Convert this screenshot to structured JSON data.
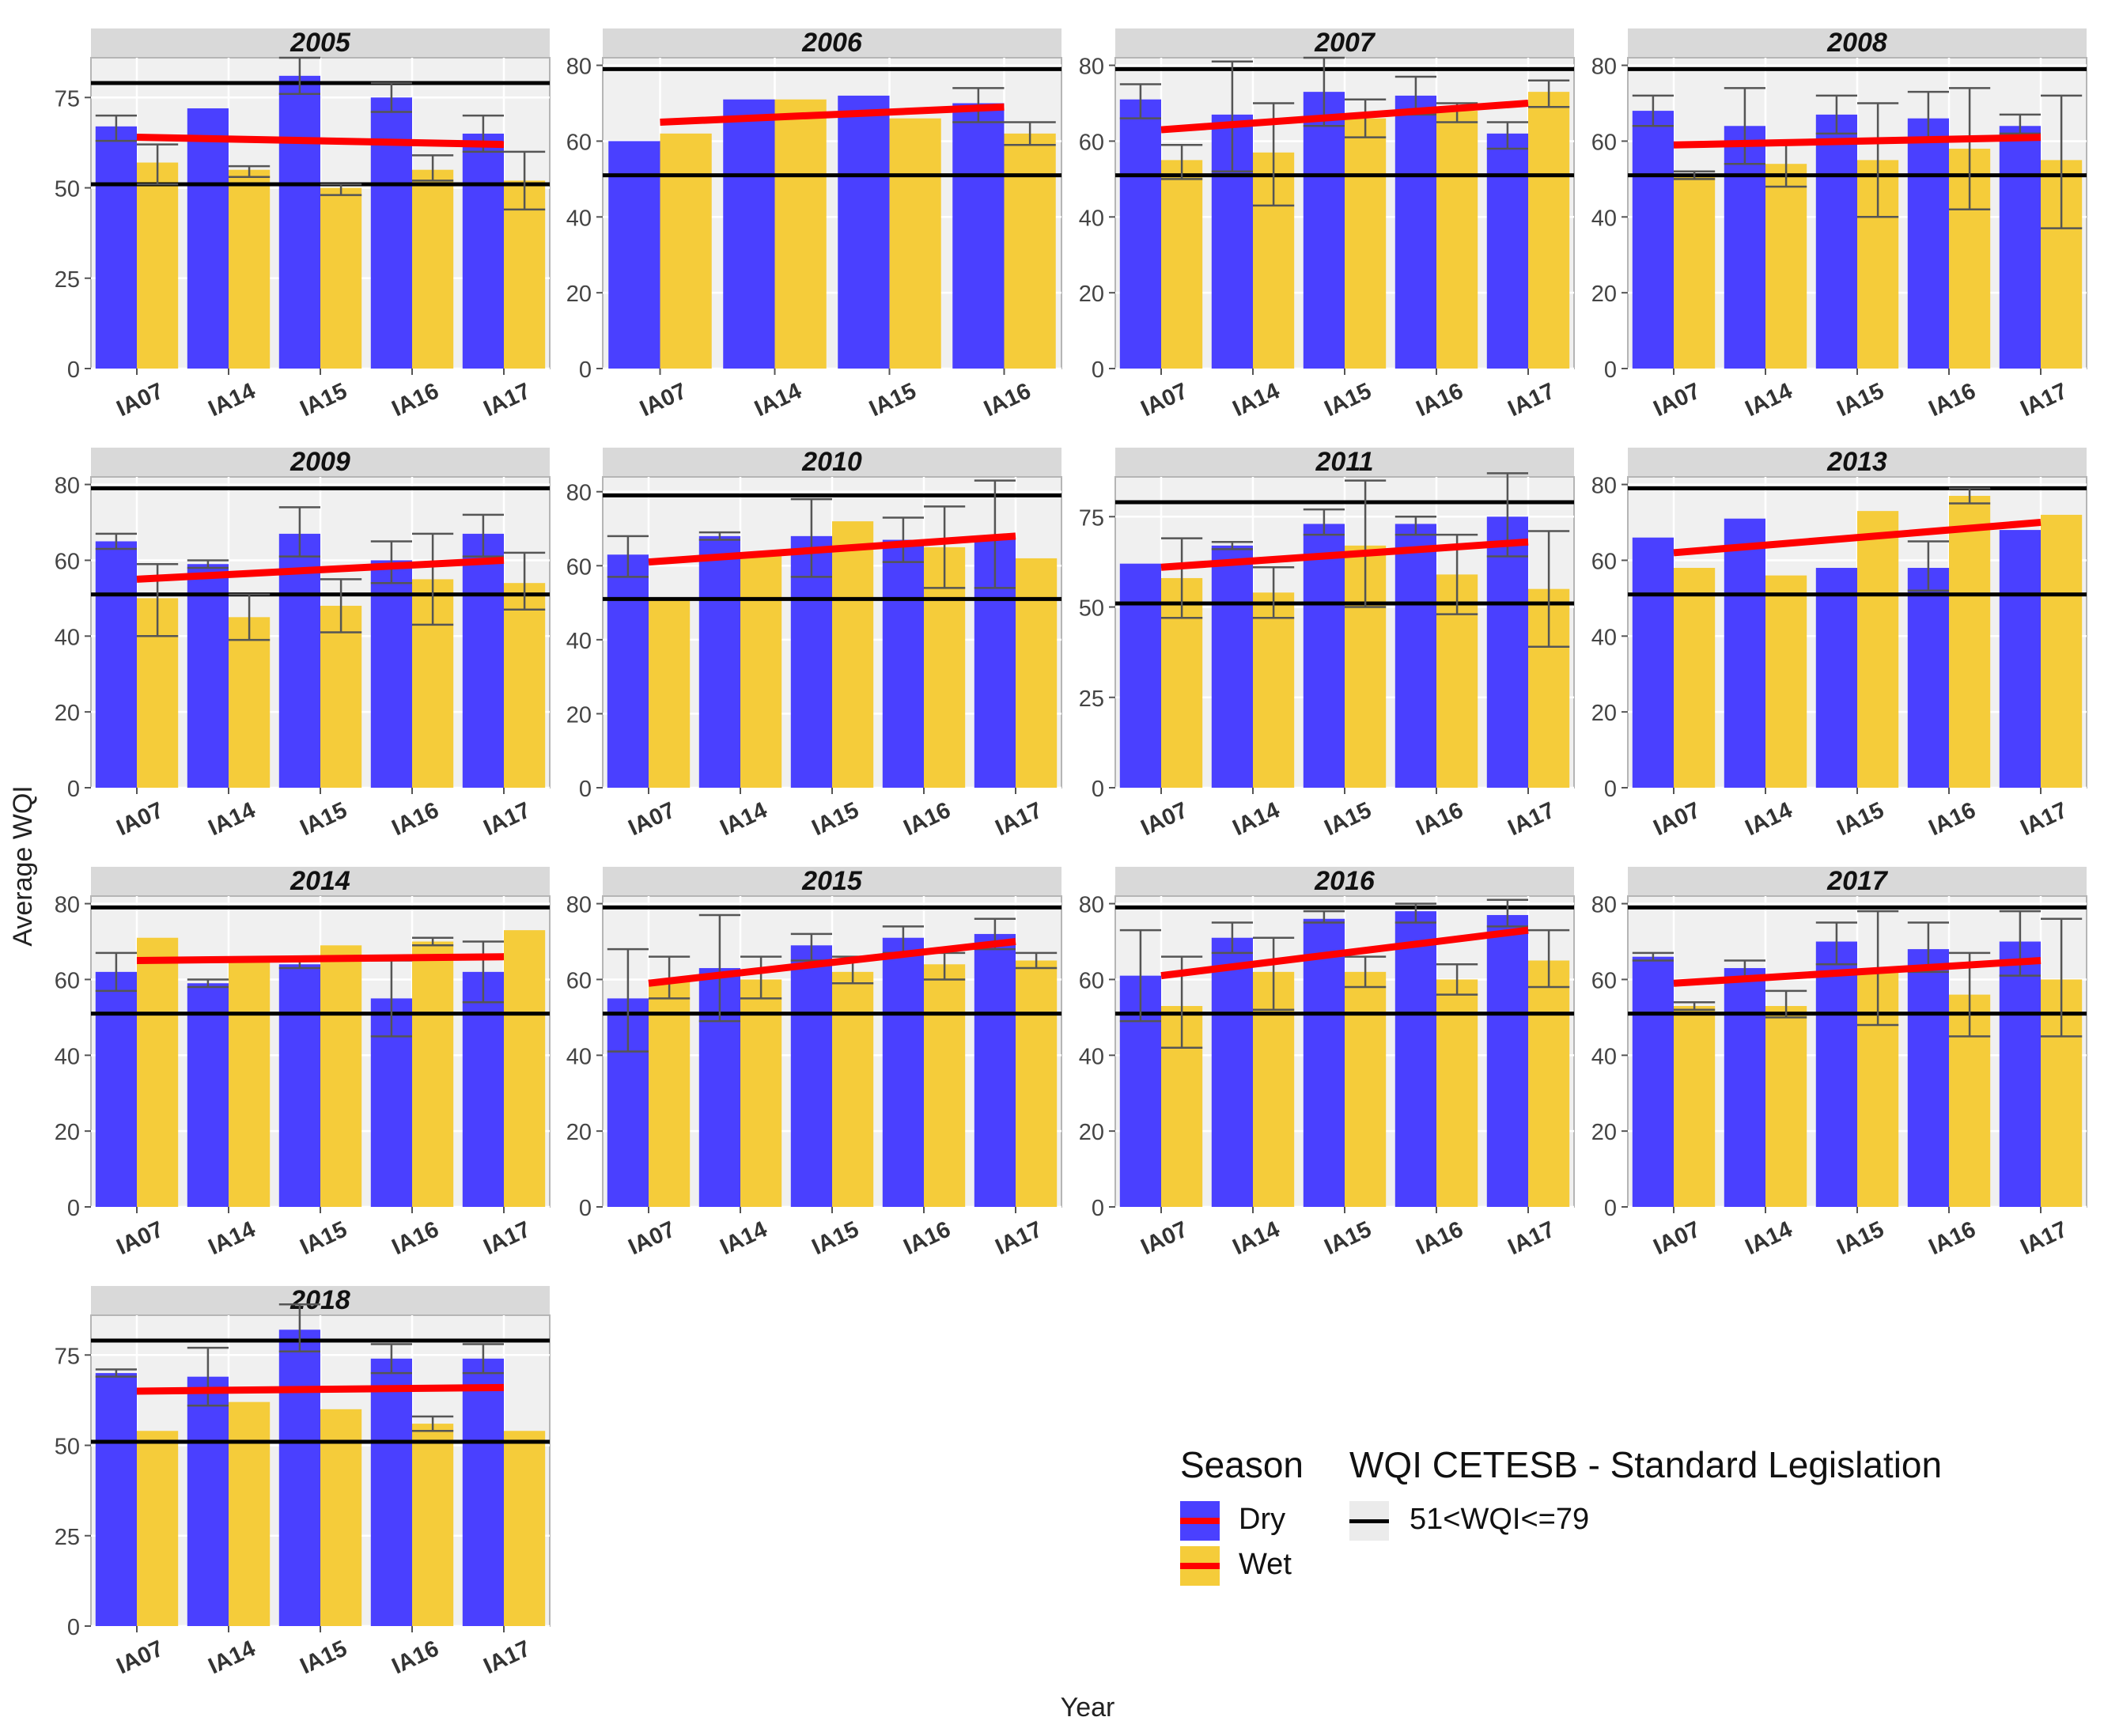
{
  "axis": {
    "ylabel": "Average WQI",
    "xlabel": "Year"
  },
  "colors": {
    "dry": "#4a40ff",
    "wet": "#f5cc3a",
    "trend": "#ff0000",
    "standard": "#000000",
    "panel_bg": "#f0f0f0",
    "strip_bg": "#d9d9d9"
  },
  "legend": {
    "season_title": "Season",
    "season_items": [
      {
        "label": "Dry",
        "color": "#4a40ff"
      },
      {
        "label": "Wet",
        "color": "#f5cc3a"
      }
    ],
    "standard_title": "WQI CETESB - Standard Legislation",
    "standard_label": "51<WQI<=79"
  },
  "chart_data": {
    "type": "bar",
    "standard_lines": [
      51,
      79
    ],
    "panels": [
      {
        "year": "2005",
        "ylim": [
          0,
          86
        ],
        "yticks": [
          0,
          25,
          50,
          75
        ],
        "categories": [
          "IA07",
          "IA14",
          "IA15",
          "IA16",
          "IA17"
        ],
        "dry": [
          {
            "v": 67,
            "e": [
              63,
              70
            ]
          },
          {
            "v": 72,
            "e": null
          },
          {
            "v": 81,
            "e": [
              76,
              86
            ]
          },
          {
            "v": 75,
            "e": [
              71,
              79
            ]
          },
          {
            "v": 65,
            "e": [
              60,
              70
            ]
          }
        ],
        "wet": [
          {
            "v": 57,
            "e": [
              51,
              62
            ]
          },
          {
            "v": 55,
            "e": [
              53,
              56
            ]
          },
          {
            "v": 50,
            "e": [
              48,
              51
            ]
          },
          {
            "v": 55,
            "e": [
              52,
              59
            ]
          },
          {
            "v": 52,
            "e": [
              44,
              60
            ]
          }
        ],
        "trend": [
          64,
          62
        ]
      },
      {
        "year": "2006",
        "ylim": [
          0,
          82
        ],
        "yticks": [
          0,
          20,
          40,
          60,
          80
        ],
        "categories": [
          "IA07",
          "IA14",
          "IA15",
          "IA16"
        ],
        "dry": [
          {
            "v": 60,
            "e": null
          },
          {
            "v": 71,
            "e": null
          },
          {
            "v": 72,
            "e": null
          },
          {
            "v": 70,
            "e": [
              65,
              74
            ]
          }
        ],
        "wet": [
          {
            "v": 62,
            "e": null
          },
          {
            "v": 71,
            "e": null
          },
          {
            "v": 66,
            "e": null
          },
          {
            "v": 62,
            "e": [
              59,
              65
            ]
          }
        ],
        "trend": [
          65,
          69
        ]
      },
      {
        "year": "2007",
        "ylim": [
          0,
          82
        ],
        "yticks": [
          0,
          20,
          40,
          60,
          80
        ],
        "categories": [
          "IA07",
          "IA14",
          "IA15",
          "IA16",
          "IA17"
        ],
        "dry": [
          {
            "v": 71,
            "e": [
              66,
              75
            ]
          },
          {
            "v": 67,
            "e": [
              52,
              81
            ]
          },
          {
            "v": 73,
            "e": [
              64,
              82
            ]
          },
          {
            "v": 72,
            "e": [
              67,
              77
            ]
          },
          {
            "v": 62,
            "e": [
              58,
              65
            ]
          }
        ],
        "wet": [
          {
            "v": 55,
            "e": [
              50,
              59
            ]
          },
          {
            "v": 57,
            "e": [
              43,
              70
            ]
          },
          {
            "v": 66,
            "e": [
              61,
              71
            ]
          },
          {
            "v": 68,
            "e": [
              65,
              70
            ]
          },
          {
            "v": 73,
            "e": [
              69,
              76
            ]
          }
        ],
        "trend": [
          63,
          70
        ]
      },
      {
        "year": "2008",
        "ylim": [
          0,
          82
        ],
        "yticks": [
          0,
          20,
          40,
          60,
          80
        ],
        "categories": [
          "IA07",
          "IA14",
          "IA15",
          "IA16",
          "IA17"
        ],
        "dry": [
          {
            "v": 68,
            "e": [
              64,
              72
            ]
          },
          {
            "v": 64,
            "e": [
              54,
              74
            ]
          },
          {
            "v": 67,
            "e": [
              62,
              72
            ]
          },
          {
            "v": 66,
            "e": [
              60,
              73
            ]
          },
          {
            "v": 64,
            "e": [
              62,
              67
            ]
          }
        ],
        "wet": [
          {
            "v": 51,
            "e": [
              50,
              52
            ]
          },
          {
            "v": 54,
            "e": [
              48,
              60
            ]
          },
          {
            "v": 55,
            "e": [
              40,
              70
            ]
          },
          {
            "v": 58,
            "e": [
              42,
              74
            ]
          },
          {
            "v": 55,
            "e": [
              37,
              72
            ]
          }
        ],
        "trend": [
          59,
          61
        ]
      },
      {
        "year": "2009",
        "ylim": [
          0,
          82
        ],
        "yticks": [
          0,
          20,
          40,
          60,
          80
        ],
        "categories": [
          "IA07",
          "IA14",
          "IA15",
          "IA16",
          "IA17"
        ],
        "dry": [
          {
            "v": 65,
            "e": [
              63,
              67
            ]
          },
          {
            "v": 59,
            "e": [
              58,
              60
            ]
          },
          {
            "v": 67,
            "e": [
              61,
              74
            ]
          },
          {
            "v": 60,
            "e": [
              54,
              65
            ]
          },
          {
            "v": 67,
            "e": [
              61,
              72
            ]
          }
        ],
        "wet": [
          {
            "v": 50,
            "e": [
              40,
              59
            ]
          },
          {
            "v": 45,
            "e": [
              39,
              51
            ]
          },
          {
            "v": 48,
            "e": [
              41,
              55
            ]
          },
          {
            "v": 55,
            "e": [
              43,
              67
            ]
          },
          {
            "v": 54,
            "e": [
              47,
              62
            ]
          }
        ],
        "trend": [
          55,
          60
        ]
      },
      {
        "year": "2010",
        "ylim": [
          0,
          84
        ],
        "yticks": [
          0,
          20,
          40,
          60,
          80
        ],
        "categories": [
          "IA07",
          "IA14",
          "IA15",
          "IA16",
          "IA17"
        ],
        "dry": [
          {
            "v": 63,
            "e": [
              57,
              68
            ]
          },
          {
            "v": 68,
            "e": [
              67,
              69
            ]
          },
          {
            "v": 68,
            "e": [
              57,
              78
            ]
          },
          {
            "v": 67,
            "e": [
              61,
              73
            ]
          },
          {
            "v": 68,
            "e": [
              54,
              83
            ]
          }
        ],
        "wet": [
          {
            "v": 51,
            "e": null
          },
          {
            "v": 63,
            "e": null
          },
          {
            "v": 72,
            "e": null
          },
          {
            "v": 65,
            "e": [
              54,
              76
            ]
          },
          {
            "v": 62,
            "e": null
          }
        ],
        "trend": [
          61,
          68
        ]
      },
      {
        "year": "2011",
        "ylim": [
          0,
          86
        ],
        "yticks": [
          0,
          25,
          50,
          75
        ],
        "categories": [
          "IA07",
          "IA14",
          "IA15",
          "IA16",
          "IA17"
        ],
        "dry": [
          {
            "v": 62,
            "e": null
          },
          {
            "v": 67,
            "e": [
              66,
              68
            ]
          },
          {
            "v": 73,
            "e": [
              70,
              77
            ]
          },
          {
            "v": 73,
            "e": [
              70,
              75
            ]
          },
          {
            "v": 75,
            "e": [
              64,
              87
            ]
          }
        ],
        "wet": [
          {
            "v": 58,
            "e": [
              47,
              69
            ]
          },
          {
            "v": 54,
            "e": [
              47,
              61
            ]
          },
          {
            "v": 67,
            "e": [
              50,
              85
            ]
          },
          {
            "v": 59,
            "e": [
              48,
              70
            ]
          },
          {
            "v": 55,
            "e": [
              39,
              71
            ]
          }
        ],
        "trend": [
          61,
          68
        ]
      },
      {
        "year": "2013",
        "ylim": [
          0,
          82
        ],
        "yticks": [
          0,
          20,
          40,
          60,
          80
        ],
        "categories": [
          "IA07",
          "IA14",
          "IA15",
          "IA16",
          "IA17"
        ],
        "dry": [
          {
            "v": 66,
            "e": null
          },
          {
            "v": 71,
            "e": null
          },
          {
            "v": 58,
            "e": null
          },
          {
            "v": 58,
            "e": [
              52,
              65
            ]
          },
          {
            "v": 68,
            "e": null
          }
        ],
        "wet": [
          {
            "v": 58,
            "e": null
          },
          {
            "v": 56,
            "e": null
          },
          {
            "v": 73,
            "e": null
          },
          {
            "v": 77,
            "e": [
              75,
              79
            ]
          },
          {
            "v": 72,
            "e": null
          }
        ],
        "trend": [
          62,
          70
        ]
      },
      {
        "year": "2014",
        "ylim": [
          0,
          82
        ],
        "yticks": [
          0,
          20,
          40,
          60,
          80
        ],
        "categories": [
          "IA07",
          "IA14",
          "IA15",
          "IA16",
          "IA17"
        ],
        "dry": [
          {
            "v": 62,
            "e": [
              57,
              67
            ]
          },
          {
            "v": 59,
            "e": [
              58,
              60
            ]
          },
          {
            "v": 64,
            "e": [
              63,
              65
            ]
          },
          {
            "v": 55,
            "e": [
              45,
              65
            ]
          },
          {
            "v": 62,
            "e": [
              54,
              70
            ]
          }
        ],
        "wet": [
          {
            "v": 71,
            "e": null
          },
          {
            "v": 65,
            "e": null
          },
          {
            "v": 69,
            "e": null
          },
          {
            "v": 70,
            "e": [
              69,
              71
            ]
          },
          {
            "v": 73,
            "e": null
          }
        ],
        "trend": [
          65,
          66
        ]
      },
      {
        "year": "2015",
        "ylim": [
          0,
          82
        ],
        "yticks": [
          0,
          20,
          40,
          60,
          80
        ],
        "categories": [
          "IA07",
          "IA14",
          "IA15",
          "IA16",
          "IA17"
        ],
        "dry": [
          {
            "v": 55,
            "e": [
              41,
              68
            ]
          },
          {
            "v": 63,
            "e": [
              49,
              77
            ]
          },
          {
            "v": 69,
            "e": [
              65,
              72
            ]
          },
          {
            "v": 71,
            "e": [
              67,
              74
            ]
          },
          {
            "v": 72,
            "e": [
              68,
              76
            ]
          }
        ],
        "wet": [
          {
            "v": 60,
            "e": [
              55,
              66
            ]
          },
          {
            "v": 60,
            "e": [
              55,
              66
            ]
          },
          {
            "v": 62,
            "e": [
              59,
              66
            ]
          },
          {
            "v": 64,
            "e": [
              60,
              67
            ]
          },
          {
            "v": 65,
            "e": [
              63,
              67
            ]
          }
        ],
        "trend": [
          59,
          70
        ]
      },
      {
        "year": "2016",
        "ylim": [
          0,
          82
        ],
        "yticks": [
          0,
          20,
          40,
          60,
          80
        ],
        "categories": [
          "IA07",
          "IA14",
          "IA15",
          "IA16",
          "IA17"
        ],
        "dry": [
          {
            "v": 61,
            "e": [
              49,
              73
            ]
          },
          {
            "v": 71,
            "e": [
              67,
              75
            ]
          },
          {
            "v": 76,
            "e": [
              75,
              78
            ]
          },
          {
            "v": 78,
            "e": [
              75,
              80
            ]
          },
          {
            "v": 77,
            "e": [
              74,
              81
            ]
          }
        ],
        "wet": [
          {
            "v": 53,
            "e": [
              42,
              66
            ]
          },
          {
            "v": 62,
            "e": [
              52,
              71
            ]
          },
          {
            "v": 62,
            "e": [
              58,
              66
            ]
          },
          {
            "v": 60,
            "e": [
              56,
              64
            ]
          },
          {
            "v": 65,
            "e": [
              58,
              73
            ]
          }
        ],
        "trend": [
          61,
          73
        ]
      },
      {
        "year": "2017",
        "ylim": [
          0,
          82
        ],
        "yticks": [
          0,
          20,
          40,
          60,
          80
        ],
        "categories": [
          "IA07",
          "IA14",
          "IA15",
          "IA16",
          "IA17"
        ],
        "dry": [
          {
            "v": 66,
            "e": [
              65,
              67
            ]
          },
          {
            "v": 63,
            "e": [
              60,
              65
            ]
          },
          {
            "v": 70,
            "e": [
              64,
              75
            ]
          },
          {
            "v": 68,
            "e": [
              62,
              75
            ]
          },
          {
            "v": 70,
            "e": [
              61,
              78
            ]
          }
        ],
        "wet": [
          {
            "v": 53,
            "e": [
              52,
              54
            ]
          },
          {
            "v": 53,
            "e": [
              50,
              57
            ]
          },
          {
            "v": 62,
            "e": [
              48,
              78
            ]
          },
          {
            "v": 56,
            "e": [
              45,
              67
            ]
          },
          {
            "v": 60,
            "e": [
              45,
              76
            ]
          }
        ],
        "trend": [
          59,
          65
        ]
      },
      {
        "year": "2018",
        "ylim": [
          0,
          86
        ],
        "yticks": [
          0,
          25,
          50,
          75
        ],
        "categories": [
          "IA07",
          "IA14",
          "IA15",
          "IA16",
          "IA17"
        ],
        "dry": [
          {
            "v": 70,
            "e": [
              69,
              71
            ]
          },
          {
            "v": 69,
            "e": [
              61,
              77
            ]
          },
          {
            "v": 82,
            "e": [
              76,
              89
            ]
          },
          {
            "v": 74,
            "e": [
              70,
              78
            ]
          },
          {
            "v": 74,
            "e": [
              70,
              78
            ]
          }
        ],
        "wet": [
          {
            "v": 54,
            "e": null
          },
          {
            "v": 62,
            "e": null
          },
          {
            "v": 60,
            "e": null
          },
          {
            "v": 56,
            "e": [
              54,
              58
            ]
          },
          {
            "v": 54,
            "e": null
          }
        ],
        "trend": [
          65,
          66
        ]
      }
    ]
  }
}
